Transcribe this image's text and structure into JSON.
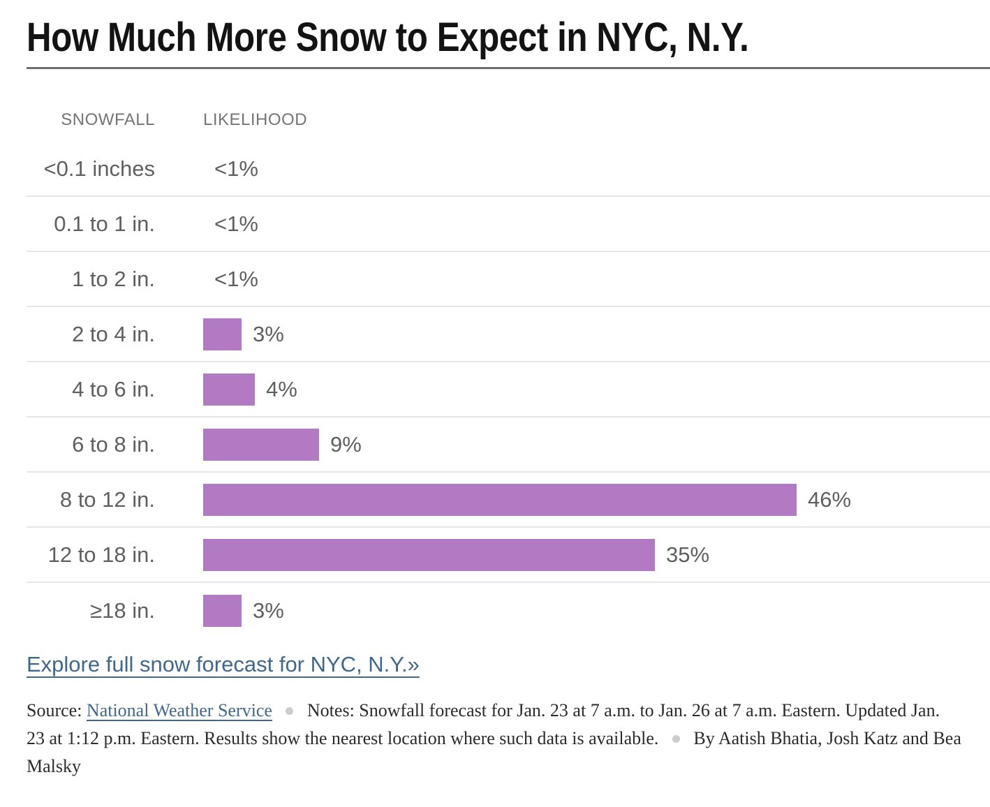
{
  "header": {
    "title": "How Much More Snow to Expect in NYC, N.Y."
  },
  "chart_data": {
    "type": "bar",
    "orientation": "horizontal",
    "title": "How Much More Snow to Expect in NYC, N.Y.",
    "columns": [
      "SNOWFALL",
      "LIKELIHOOD"
    ],
    "categories": [
      "<0.1 inches",
      "0.1 to 1 in.",
      "1 to 2 in.",
      "2 to 4 in.",
      "4 to 6 in.",
      "6 to 8 in.",
      "8 to 12 in.",
      "12 to 18 in.",
      "≥18 in."
    ],
    "values_pct": [
      0,
      0,
      0,
      3,
      4,
      9,
      46,
      35,
      3
    ],
    "value_labels": [
      "<1%",
      "<1%",
      "<1%",
      "3%",
      "4%",
      "9%",
      "46%",
      "35%",
      "3%"
    ],
    "bar_color": "#b27ac2",
    "xlim": [
      0,
      46
    ],
    "grid": "row-separators-only",
    "legend": "none"
  },
  "link": {
    "label": "Explore full snow forecast for NYC, N.Y.»"
  },
  "footer": {
    "source_label": "Source:",
    "source_link": "National Weather Service",
    "notes_label": "Notes:",
    "notes_text": "Snowfall forecast for Jan. 23 at 7 a.m. to Jan. 26 at 7 a.m. Eastern. Updated Jan. 23 at 1:12 p.m. Eastern. Results show the nearest location where such data is available.",
    "byline": "By Aatish Bhatia, Josh Katz and Bea Malsky"
  }
}
